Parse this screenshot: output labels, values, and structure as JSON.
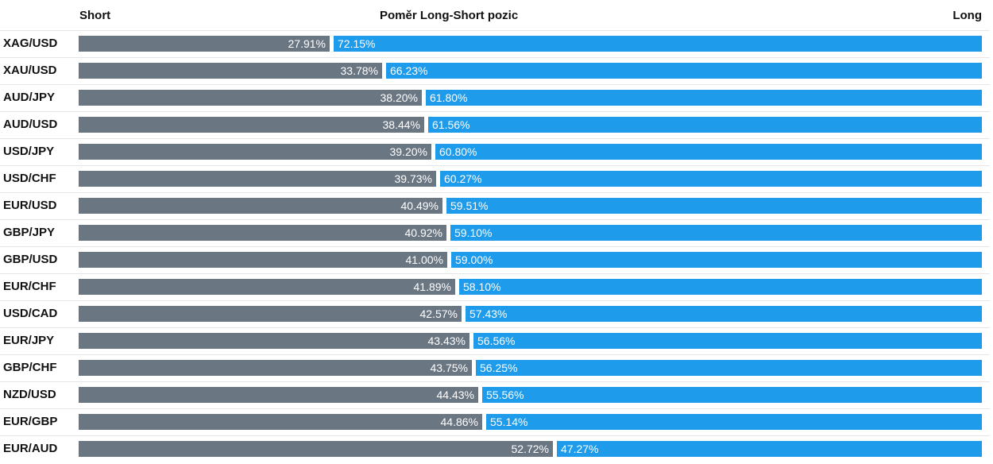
{
  "chart_data": {
    "type": "bar",
    "orientation": "horizontal-stacked",
    "title": "Poměr Long-Short pozic",
    "left_label": "Short",
    "right_label": "Long",
    "colors": {
      "short": "#6b7683",
      "long": "#1e9bea"
    },
    "rows": [
      {
        "symbol": "XAG/USD",
        "short": 27.91,
        "long": 72.15,
        "short_label": "27.91%",
        "long_label": "72.15%"
      },
      {
        "symbol": "XAU/USD",
        "short": 33.78,
        "long": 66.23,
        "short_label": "33.78%",
        "long_label": "66.23%"
      },
      {
        "symbol": "AUD/JPY",
        "short": 38.2,
        "long": 61.8,
        "short_label": "38.20%",
        "long_label": "61.80%"
      },
      {
        "symbol": "AUD/USD",
        "short": 38.44,
        "long": 61.56,
        "short_label": "38.44%",
        "long_label": "61.56%"
      },
      {
        "symbol": "USD/JPY",
        "short": 39.2,
        "long": 60.8,
        "short_label": "39.20%",
        "long_label": "60.80%"
      },
      {
        "symbol": "USD/CHF",
        "short": 39.73,
        "long": 60.27,
        "short_label": "39.73%",
        "long_label": "60.27%"
      },
      {
        "symbol": "EUR/USD",
        "short": 40.49,
        "long": 59.51,
        "short_label": "40.49%",
        "long_label": "59.51%"
      },
      {
        "symbol": "GBP/JPY",
        "short": 40.92,
        "long": 59.1,
        "short_label": "40.92%",
        "long_label": "59.10%"
      },
      {
        "symbol": "GBP/USD",
        "short": 41.0,
        "long": 59.0,
        "short_label": "41.00%",
        "long_label": "59.00%"
      },
      {
        "symbol": "EUR/CHF",
        "short": 41.89,
        "long": 58.1,
        "short_label": "41.89%",
        "long_label": "58.10%"
      },
      {
        "symbol": "USD/CAD",
        "short": 42.57,
        "long": 57.43,
        "short_label": "42.57%",
        "long_label": "57.43%"
      },
      {
        "symbol": "EUR/JPY",
        "short": 43.43,
        "long": 56.56,
        "short_label": "43.43%",
        "long_label": "56.56%"
      },
      {
        "symbol": "GBP/CHF",
        "short": 43.75,
        "long": 56.25,
        "short_label": "43.75%",
        "long_label": "56.25%"
      },
      {
        "symbol": "NZD/USD",
        "short": 44.43,
        "long": 55.56,
        "short_label": "44.43%",
        "long_label": "55.56%"
      },
      {
        "symbol": "EUR/GBP",
        "short": 44.86,
        "long": 55.14,
        "short_label": "44.86%",
        "long_label": "55.14%"
      },
      {
        "symbol": "EUR/AUD",
        "short": 52.72,
        "long": 47.27,
        "short_label": "52.72%",
        "long_label": "47.27%"
      }
    ]
  }
}
